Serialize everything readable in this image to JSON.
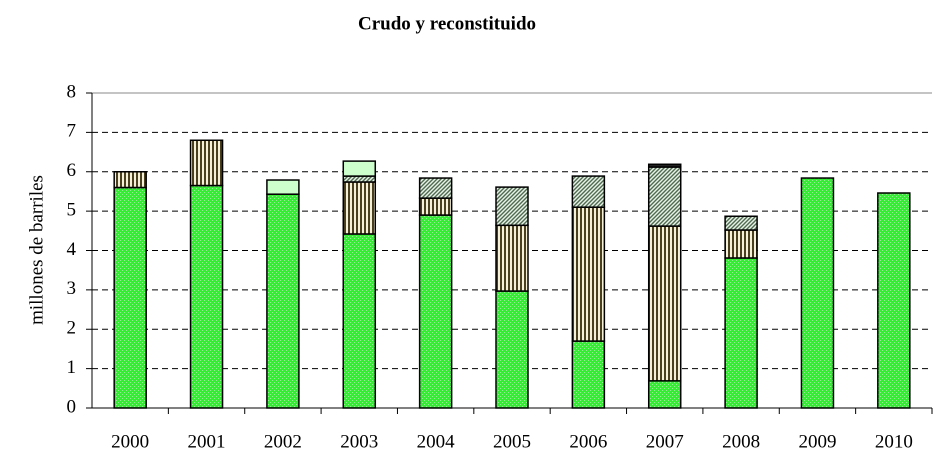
{
  "chart_data": {
    "type": "stacked-bar",
    "title": "Crudo y reconstituido",
    "y_label": "millones de barriles",
    "categories": [
      "2000",
      "2001",
      "2002",
      "2003",
      "2004",
      "2005",
      "2006",
      "2007",
      "2008",
      "2009",
      "2010"
    ],
    "series": [
      {
        "color": "#33ee33",
        "pattern": "dots",
        "values": [
          5.6,
          5.65,
          5.43,
          4.42,
          4.9,
          2.97,
          1.7,
          0.69,
          3.81,
          5.84,
          5.46
        ]
      },
      {
        "color": "#4a4020",
        "pattern": "vertical",
        "values": [
          0.4,
          1.15,
          0,
          1.32,
          0.43,
          1.67,
          3.4,
          3.93,
          0.71,
          0,
          0
        ]
      },
      {
        "color": "#4f6a4f",
        "pattern": "diagonal",
        "values": [
          0,
          0,
          0,
          0.15,
          0.51,
          0.97,
          0.79,
          1.5,
          0.35,
          0,
          0
        ]
      },
      {
        "color": "#ccffcc",
        "pattern": "solid",
        "values": [
          0,
          0,
          0.36,
          0.38,
          0,
          0,
          0,
          0,
          0,
          0,
          0
        ]
      },
      {
        "color": "#222222",
        "pattern": "solid",
        "values": [
          0,
          0,
          0,
          0,
          0,
          0,
          0,
          0.07,
          0,
          0,
          0
        ]
      }
    ],
    "ylim": [
      0,
      8
    ],
    "yticks": [
      0,
      1,
      2,
      3,
      4,
      5,
      6,
      7,
      8
    ],
    "grid": true
  }
}
